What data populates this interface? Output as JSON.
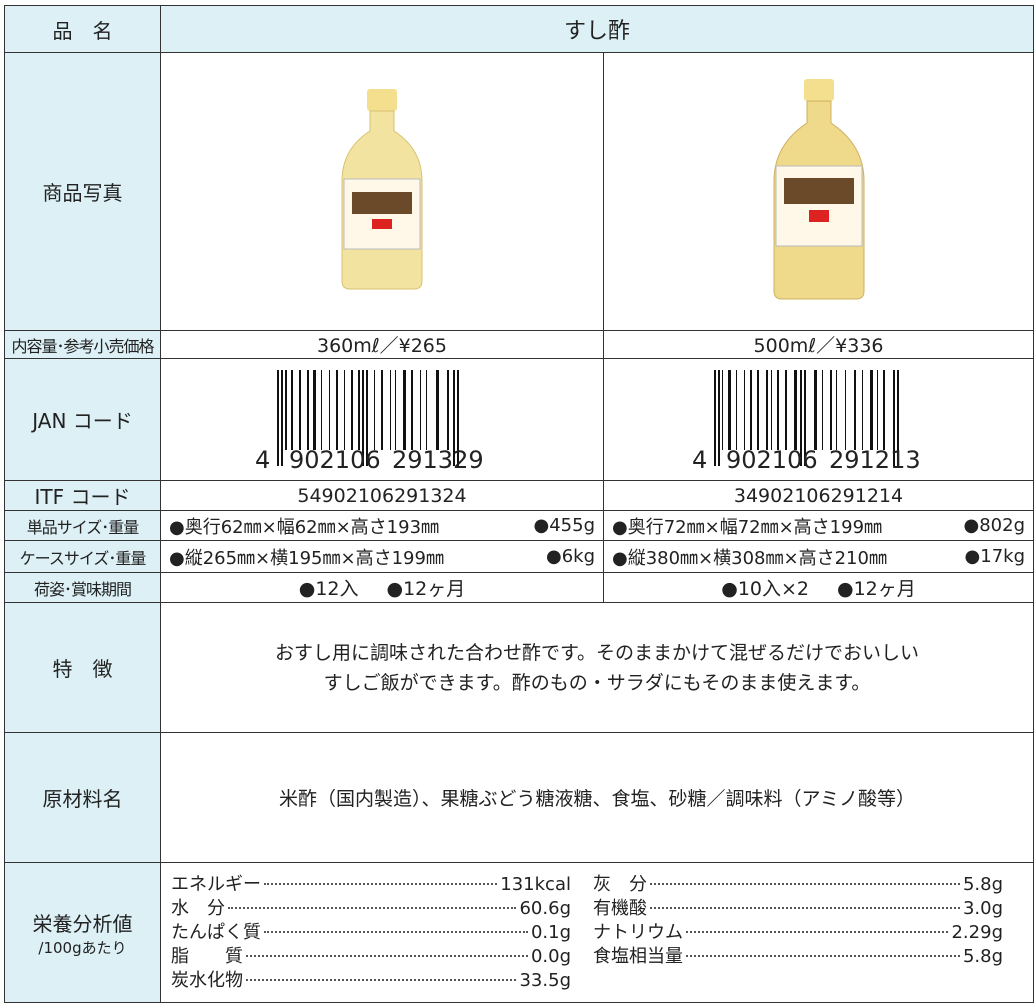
{
  "labels": {
    "name": "品　名",
    "photo": "商品写真",
    "volume_price": "内容量･参考小売価格",
    "jan": "JAN コード",
    "itf": "ITF コード",
    "unit_size": "単品サイズ･重量",
    "case_size": "ケースサイズ･重量",
    "packing": "荷姿･賞味期間",
    "feature": "特　徴",
    "ingredients": "原材料名",
    "nutrition": "栄養分析値",
    "nutrition_note": "/100gあたり"
  },
  "product_name": "すし酢",
  "products": [
    {
      "volume_price": "360mℓ／¥265",
      "jan": {
        "lead": "4",
        "left": "902106",
        "right": "291329"
      },
      "itf": "54902106291324",
      "unit_size": "●奥行62㎜×幅62㎜×高さ193㎜",
      "unit_weight": "●455g",
      "case_size": "●縦265㎜×横195㎜×高さ199㎜",
      "case_weight": "●6kg",
      "packing": [
        "●12入",
        "●12ヶ月"
      ]
    },
    {
      "volume_price": "500mℓ／¥336",
      "jan": {
        "lead": "4",
        "left": "902106",
        "right": "291213"
      },
      "itf": "34902106291214",
      "unit_size": "●奥行72㎜×幅72㎜×高さ199㎜",
      "unit_weight": "●802g",
      "case_size": "●縦380㎜×横308㎜×高さ210㎜",
      "case_weight": "●17kg",
      "packing": [
        "●10入×2",
        "●12ヶ月"
      ]
    }
  ],
  "feature": [
    "おすし用に調味された合わせ酢です。そのままかけて混ぜるだけでおいしい",
    "すしご飯ができます。酢のもの・サラダにもそのまま使えます。"
  ],
  "ingredients": "米酢（国内製造）、果糖ぶどう糖液糖、食塩、砂糖／調味料（アミノ酸等）",
  "nutrition": {
    "left": [
      {
        "name": "エネルギー",
        "value": "131kcal"
      },
      {
        "name": "水　分",
        "value": "60.6g"
      },
      {
        "name": "たんぱく質",
        "value": "0.1g"
      },
      {
        "name": "脂　　質",
        "value": "0.0g"
      },
      {
        "name": "炭水化物",
        "value": "33.5g"
      }
    ],
    "right": [
      {
        "name": "灰　分",
        "value": "5.8g"
      },
      {
        "name": "有機酸",
        "value": "3.0g"
      },
      {
        "name": "ナトリウム",
        "value": "2.29g"
      },
      {
        "name": "食塩相当量",
        "value": "5.8g"
      }
    ]
  }
}
